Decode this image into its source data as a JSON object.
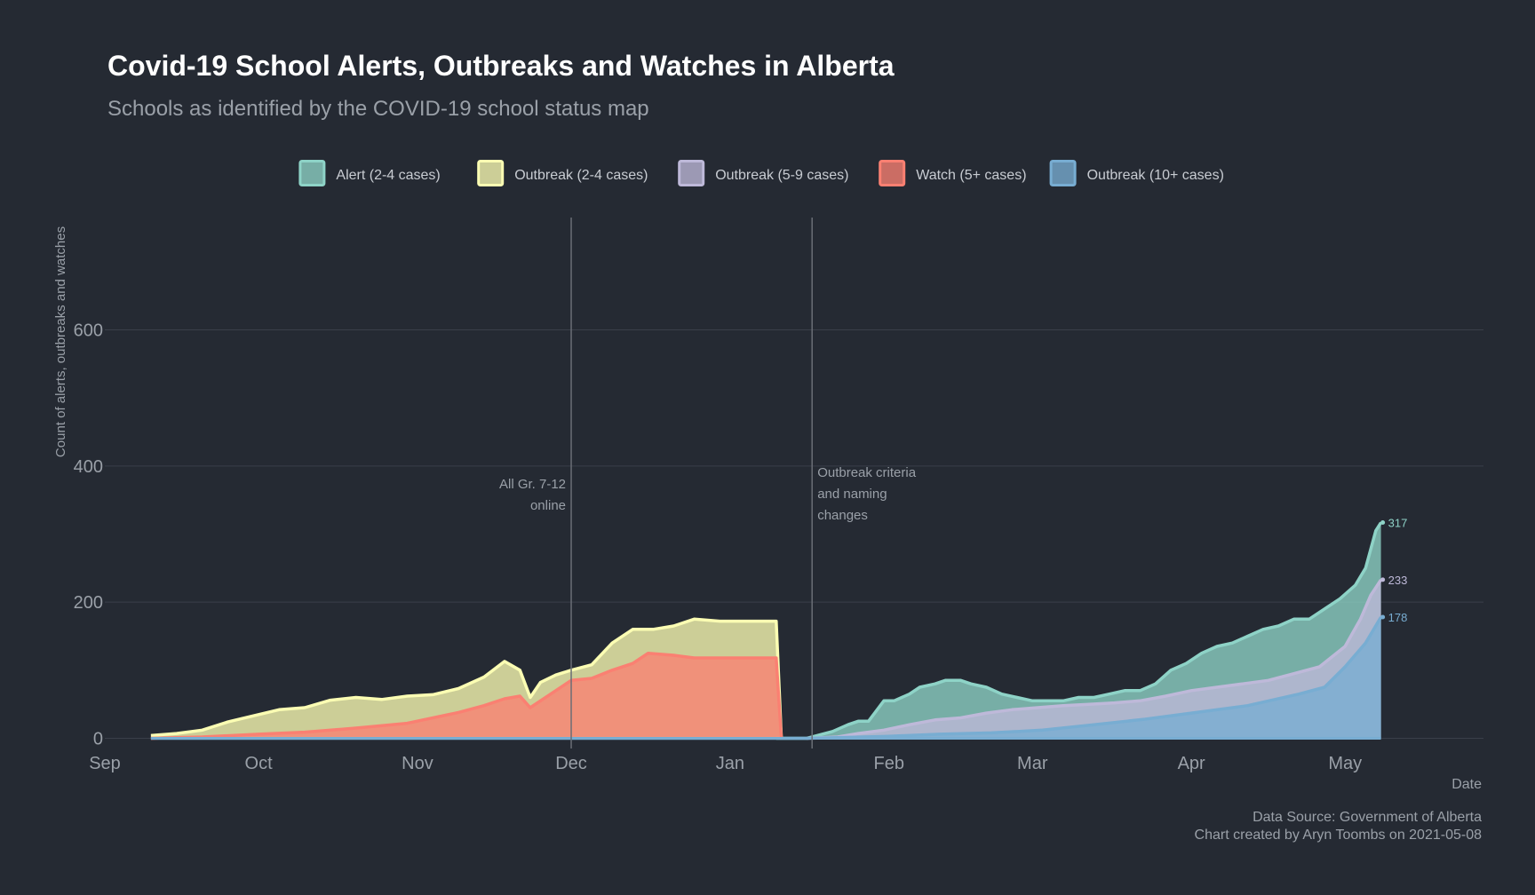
{
  "header": {
    "title": "Covid-19 School Alerts, Outbreaks and Watches in Alberta",
    "subtitle": "Schools as identified by the COVID-19 school status map"
  },
  "footer": {
    "source": "Data Source: Government of Alberta",
    "credit": "Chart created by Aryn Toombs on 2021-05-08"
  },
  "colors": {
    "background": "#252a33",
    "grid": "#3a3f4a",
    "text": "#c8ccd2",
    "muted": "#9aa0a8"
  },
  "chart_data": {
    "type": "area",
    "stacked": true,
    "xlabel": "Date",
    "ylabel": "Count of alerts, outbreaks and watches",
    "xlim": [
      "2020-09-01",
      "2021-05-28"
    ],
    "ylim": [
      -15,
      765
    ],
    "yticks": [
      0,
      200,
      400,
      600
    ],
    "xticks": [
      {
        "date": "2020-09-01",
        "label": "Sep"
      },
      {
        "date": "2020-10-01",
        "label": "Oct"
      },
      {
        "date": "2020-11-01",
        "label": "Nov"
      },
      {
        "date": "2020-12-01",
        "label": "Dec"
      },
      {
        "date": "2021-01-01",
        "label": "Jan"
      },
      {
        "date": "2021-02-01",
        "label": "Feb"
      },
      {
        "date": "2021-03-01",
        "label": "Mar"
      },
      {
        "date": "2021-04-01",
        "label": "Apr"
      },
      {
        "date": "2021-05-01",
        "label": "May"
      }
    ],
    "grid": true,
    "legend_position": "top",
    "annotations": [
      {
        "date": "2020-12-01",
        "lines": [
          "All Gr. 7-12",
          "online"
        ],
        "align": "left"
      },
      {
        "date": "2021-01-17",
        "lines": [
          "Outbreak criteria",
          "and naming",
          "changes"
        ],
        "align": "right"
      }
    ],
    "end_labels": [
      {
        "series": "Alert (2-4 cases)",
        "label": "317"
      },
      {
        "series": "Outbreak (5-9 cases)",
        "label": "233"
      },
      {
        "series": "Outbreak (10+ cases)",
        "label": "178"
      }
    ],
    "series": [
      {
        "name": "Alert (2-4 cases)",
        "color": "#8ed3c7",
        "points": [
          [
            "2021-01-10",
            0
          ],
          [
            "2021-01-16",
            0
          ],
          [
            "2021-01-21",
            10
          ],
          [
            "2021-01-24",
            20
          ],
          [
            "2021-01-26",
            25
          ],
          [
            "2021-01-28",
            25
          ],
          [
            "2021-01-31",
            55
          ],
          [
            "2021-02-02",
            55
          ],
          [
            "2021-02-05",
            65
          ],
          [
            "2021-02-07",
            75
          ],
          [
            "2021-02-10",
            80
          ],
          [
            "2021-02-12",
            85
          ],
          [
            "2021-02-15",
            85
          ],
          [
            "2021-02-17",
            80
          ],
          [
            "2021-02-20",
            75
          ],
          [
            "2021-02-23",
            65
          ],
          [
            "2021-02-26",
            60
          ],
          [
            "2021-03-01",
            55
          ],
          [
            "2021-03-04",
            55
          ],
          [
            "2021-03-07",
            55
          ],
          [
            "2021-03-10",
            60
          ],
          [
            "2021-03-13",
            60
          ],
          [
            "2021-03-16",
            65
          ],
          [
            "2021-03-19",
            70
          ],
          [
            "2021-03-22",
            70
          ],
          [
            "2021-03-25",
            80
          ],
          [
            "2021-03-28",
            100
          ],
          [
            "2021-03-31",
            110
          ],
          [
            "2021-04-03",
            125
          ],
          [
            "2021-04-06",
            135
          ],
          [
            "2021-04-09",
            140
          ],
          [
            "2021-04-12",
            150
          ],
          [
            "2021-04-15",
            160
          ],
          [
            "2021-04-18",
            165
          ],
          [
            "2021-04-21",
            175
          ],
          [
            "2021-04-24",
            175
          ],
          [
            "2021-04-27",
            190
          ],
          [
            "2021-04-30",
            205
          ],
          [
            "2021-05-03",
            225
          ],
          [
            "2021-05-05",
            250
          ],
          [
            "2021-05-07",
            305
          ],
          [
            "2021-05-08",
            317
          ]
        ]
      },
      {
        "name": "Outbreak (2-4 cases)",
        "color": "#fbfdb3",
        "points": [
          [
            "2020-09-10",
            4
          ],
          [
            "2020-09-15",
            7
          ],
          [
            "2020-09-20",
            12
          ],
          [
            "2020-09-25",
            24
          ],
          [
            "2020-09-30",
            33
          ],
          [
            "2020-10-05",
            42
          ],
          [
            "2020-10-10",
            45
          ],
          [
            "2020-10-15",
            56
          ],
          [
            "2020-10-20",
            60
          ],
          [
            "2020-10-25",
            57
          ],
          [
            "2020-10-30",
            62
          ],
          [
            "2020-11-04",
            64
          ],
          [
            "2020-11-09",
            73
          ],
          [
            "2020-11-14",
            90
          ],
          [
            "2020-11-18",
            113
          ],
          [
            "2020-11-21",
            100
          ],
          [
            "2020-11-23",
            60
          ],
          [
            "2020-11-25",
            82
          ],
          [
            "2020-11-28",
            93
          ],
          [
            "2020-12-01",
            100
          ],
          [
            "2020-12-05",
            108
          ],
          [
            "2020-12-09",
            140
          ],
          [
            "2020-12-13",
            160
          ],
          [
            "2020-12-17",
            160
          ],
          [
            "2020-12-21",
            165
          ],
          [
            "2020-12-25",
            175
          ],
          [
            "2020-12-30",
            172
          ],
          [
            "2021-01-05",
            172
          ],
          [
            "2021-01-10",
            172
          ],
          [
            "2021-01-11",
            0
          ]
        ]
      },
      {
        "name": "Outbreak (5-9 cases)",
        "color": "#beb9d9",
        "points": [
          [
            "2021-01-16",
            0
          ],
          [
            "2021-01-22",
            2
          ],
          [
            "2021-01-26",
            7
          ],
          [
            "2021-01-31",
            12
          ],
          [
            "2021-02-05",
            20
          ],
          [
            "2021-02-10",
            27
          ],
          [
            "2021-02-15",
            30
          ],
          [
            "2021-02-20",
            37
          ],
          [
            "2021-02-25",
            42
          ],
          [
            "2021-03-02",
            45
          ],
          [
            "2021-03-07",
            48
          ],
          [
            "2021-03-12",
            50
          ],
          [
            "2021-03-17",
            52
          ],
          [
            "2021-03-22",
            55
          ],
          [
            "2021-03-27",
            62
          ],
          [
            "2021-04-01",
            70
          ],
          [
            "2021-04-06",
            75
          ],
          [
            "2021-04-11",
            80
          ],
          [
            "2021-04-16",
            85
          ],
          [
            "2021-04-21",
            95
          ],
          [
            "2021-04-26",
            105
          ],
          [
            "2021-05-01",
            135
          ],
          [
            "2021-05-04",
            175
          ],
          [
            "2021-05-06",
            210
          ],
          [
            "2021-05-08",
            233
          ]
        ]
      },
      {
        "name": "Watch (5+ cases)",
        "color": "#fa8072",
        "points": [
          [
            "2020-09-10",
            0
          ],
          [
            "2020-09-20",
            2
          ],
          [
            "2020-10-01",
            6
          ],
          [
            "2020-10-10",
            9
          ],
          [
            "2020-10-20",
            15
          ],
          [
            "2020-10-30",
            22
          ],
          [
            "2020-11-09",
            38
          ],
          [
            "2020-11-14",
            48
          ],
          [
            "2020-11-18",
            58
          ],
          [
            "2020-11-21",
            62
          ],
          [
            "2020-11-23",
            45
          ],
          [
            "2020-11-28",
            70
          ],
          [
            "2020-12-01",
            85
          ],
          [
            "2020-12-05",
            88
          ],
          [
            "2020-12-09",
            100
          ],
          [
            "2020-12-13",
            110
          ],
          [
            "2020-12-16",
            125
          ],
          [
            "2020-12-21",
            122
          ],
          [
            "2020-12-25",
            118
          ],
          [
            "2020-12-30",
            118
          ],
          [
            "2021-01-05",
            118
          ],
          [
            "2021-01-10",
            118
          ],
          [
            "2021-01-11",
            0
          ]
        ]
      },
      {
        "name": "Outbreak (10+ cases)",
        "color": "#78add2",
        "points": [
          [
            "2020-09-10",
            0
          ],
          [
            "2021-01-16",
            0
          ],
          [
            "2021-01-22",
            1
          ],
          [
            "2021-02-01",
            3
          ],
          [
            "2021-02-11",
            6
          ],
          [
            "2021-02-21",
            8
          ],
          [
            "2021-03-03",
            12
          ],
          [
            "2021-03-13",
            20
          ],
          [
            "2021-03-23",
            28
          ],
          [
            "2021-04-02",
            38
          ],
          [
            "2021-04-12",
            48
          ],
          [
            "2021-04-22",
            65
          ],
          [
            "2021-04-27",
            75
          ],
          [
            "2021-05-01",
            105
          ],
          [
            "2021-05-05",
            140
          ],
          [
            "2021-05-08",
            178
          ]
        ]
      }
    ],
    "draw_order": [
      "Alert (2-4 cases)",
      "Outbreak (5-9 cases)",
      "Outbreak (10+ cases)",
      "Outbreak (2-4 cases)",
      "Watch (5+ cases)"
    ]
  }
}
